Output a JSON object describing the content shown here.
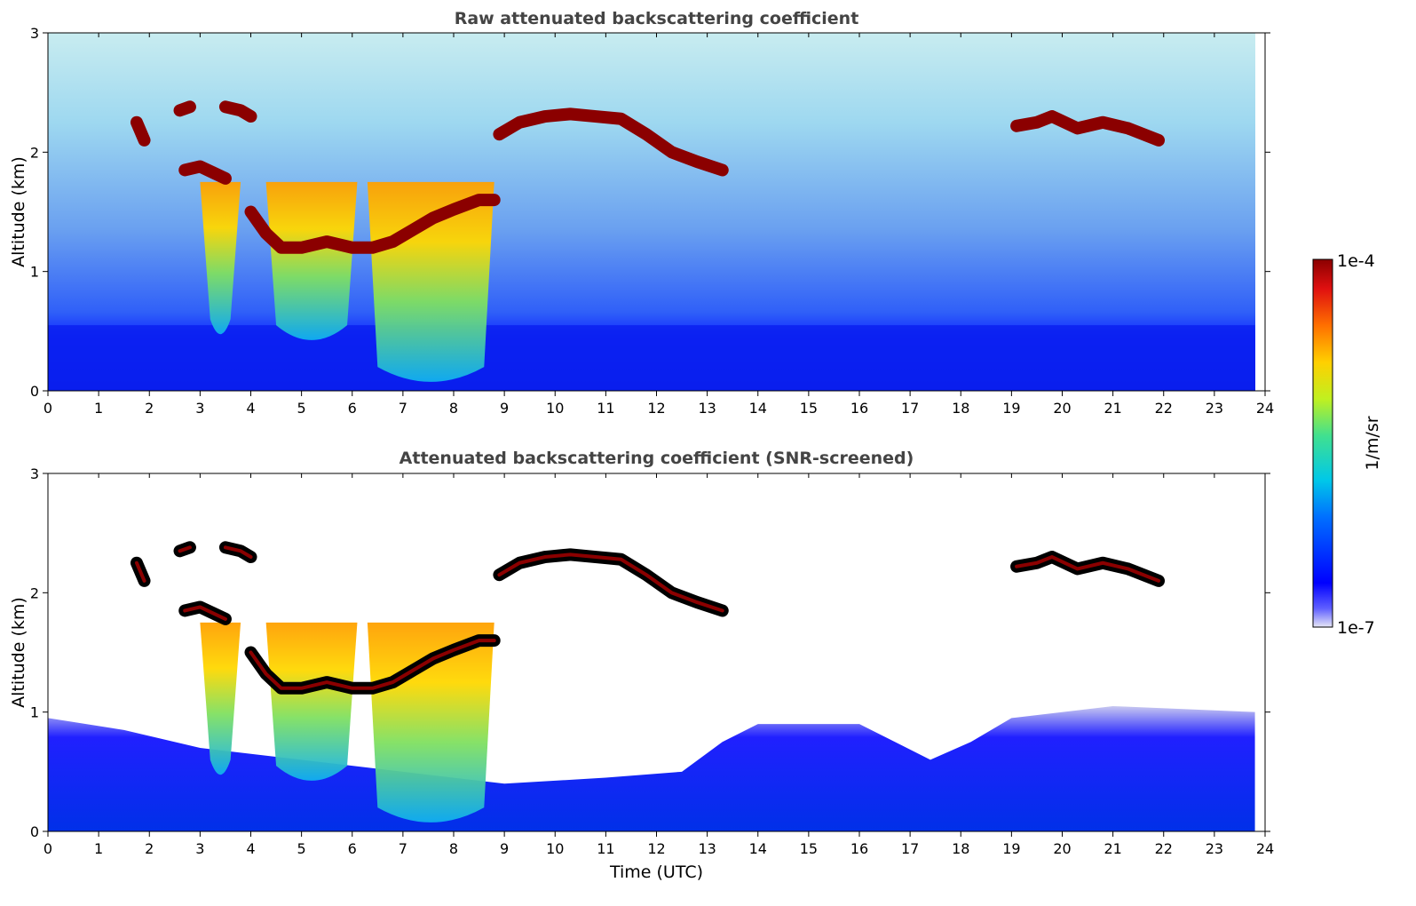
{
  "chart_data": [
    {
      "type": "heatmap",
      "title": "Raw attenuated backscattering coefficient",
      "xlabel": "",
      "ylabel": "Altitude (km)",
      "xlim": [
        0,
        24
      ],
      "ylim": [
        0,
        3
      ],
      "xticks": [
        0,
        1,
        2,
        3,
        4,
        5,
        6,
        7,
        8,
        9,
        10,
        11,
        12,
        13,
        14,
        15,
        16,
        17,
        18,
        19,
        20,
        21,
        22,
        23,
        24
      ],
      "yticks": [
        0,
        1,
        2,
        3
      ],
      "data_extent_hours": [
        0,
        23.8
      ],
      "layers": [
        {
          "feature": "cloud",
          "segments": [
            [
              2.6,
              2.35
            ],
            [
              2.8,
              2.38
            ]
          ]
        },
        {
          "feature": "cloud",
          "segments": [
            [
              1.75,
              2.25
            ],
            [
              1.9,
              2.1
            ]
          ]
        },
        {
          "feature": "cloud",
          "segments": [
            [
              2.7,
              1.85
            ],
            [
              3.0,
              1.88
            ],
            [
              3.3,
              1.82
            ],
            [
              3.5,
              1.78
            ]
          ]
        },
        {
          "feature": "cloud",
          "segments": [
            [
              3.5,
              2.38
            ],
            [
              3.8,
              2.35
            ],
            [
              4.0,
              2.3
            ]
          ]
        },
        {
          "feature": "cloud",
          "segments": [
            [
              4.0,
              1.5
            ],
            [
              4.3,
              1.32
            ],
            [
              4.6,
              1.2
            ],
            [
              5.0,
              1.2
            ],
            [
              5.5,
              1.25
            ],
            [
              6.0,
              1.2
            ],
            [
              6.4,
              1.2
            ],
            [
              6.8,
              1.25
            ],
            [
              7.2,
              1.35
            ],
            [
              7.6,
              1.45
            ],
            [
              8.0,
              1.52
            ],
            [
              8.5,
              1.6
            ],
            [
              8.8,
              1.6
            ]
          ]
        },
        {
          "feature": "cloud",
          "segments": [
            [
              8.9,
              2.15
            ],
            [
              9.3,
              2.25
            ],
            [
              9.8,
              2.3
            ],
            [
              10.3,
              2.32
            ],
            [
              10.8,
              2.3
            ],
            [
              11.3,
              2.28
            ],
            [
              11.8,
              2.15
            ],
            [
              12.3,
              2.0
            ],
            [
              12.8,
              1.92
            ],
            [
              13.3,
              1.85
            ]
          ]
        },
        {
          "feature": "cloud",
          "segments": [
            [
              19.1,
              2.22
            ],
            [
              19.5,
              2.25
            ],
            [
              19.8,
              2.3
            ],
            [
              20.3,
              2.2
            ],
            [
              20.8,
              2.25
            ],
            [
              21.3,
              2.2
            ],
            [
              21.9,
              2.1
            ]
          ]
        }
      ],
      "precipitation_shafts": [
        {
          "x_start": 3.0,
          "x_end": 3.8,
          "bottom_km": 0.4
        },
        {
          "x_start": 4.3,
          "x_end": 6.1,
          "bottom_km": 0.35
        },
        {
          "x_start": 6.3,
          "x_end": 8.8,
          "bottom_km": 0.0
        }
      ],
      "grid": false
    },
    {
      "type": "heatmap",
      "title": "Attenuated backscattering coefficient (SNR-screened)",
      "xlabel": "Time (UTC)",
      "ylabel": "Altitude (km)",
      "xlim": [
        0,
        24
      ],
      "ylim": [
        0,
        3
      ],
      "xticks": [
        0,
        1,
        2,
        3,
        4,
        5,
        6,
        7,
        8,
        9,
        10,
        11,
        12,
        13,
        14,
        15,
        16,
        17,
        18,
        19,
        20,
        21,
        22,
        23,
        24
      ],
      "yticks": [
        0,
        1,
        2,
        3
      ],
      "data_extent_hours": [
        0,
        23.8
      ],
      "grid": false
    }
  ],
  "colorbar": {
    "label": "1/m/sr",
    "max_label": "1e-4",
    "min_label": "1e-7",
    "scale": "log",
    "range": [
      1e-07,
      0.0001
    ],
    "colormap": [
      "#e6e6f5",
      "#0000ff",
      "#0080ff",
      "#00d0e0",
      "#40e090",
      "#c0f020",
      "#ffd000",
      "#ff7000",
      "#e01010",
      "#8b0000"
    ]
  },
  "colors": {
    "title_text": "#444444",
    "axis_text": "#000000",
    "background": "#ffffff",
    "cloud_core": "#8b0000",
    "screened_cloud_edge": "#000000"
  }
}
